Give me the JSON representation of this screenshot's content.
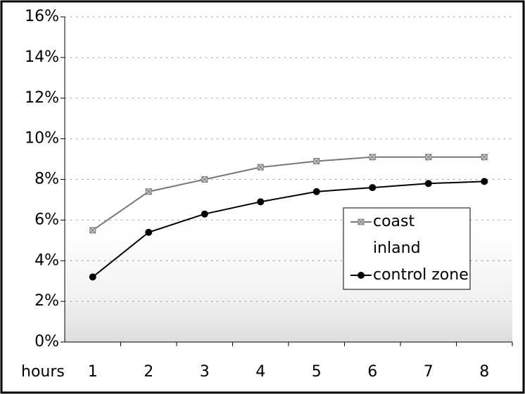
{
  "chart_data": {
    "type": "line",
    "x_label": "hours",
    "categories": [
      1,
      2,
      3,
      4,
      5,
      6,
      7,
      8
    ],
    "series": [
      {
        "name": "coast",
        "color": "#777777",
        "marker": "x",
        "values": [
          5.5,
          7.4,
          8.0,
          8.6,
          8.9,
          9.1,
          9.1,
          9.1
        ]
      },
      {
        "name": "inland",
        "color": "#ffffff",
        "marker": "none",
        "values": [
          null,
          null,
          null,
          null,
          null,
          null,
          null,
          null
        ]
      },
      {
        "name": "control zone",
        "color": "#000000",
        "marker": "circle",
        "values": [
          3.2,
          5.4,
          6.3,
          6.9,
          7.4,
          7.6,
          7.8,
          7.9
        ]
      }
    ],
    "ylim": [
      0,
      16
    ],
    "yticks": [
      {
        "value": 0,
        "label": "0%"
      },
      {
        "value": 2,
        "label": "2%"
      },
      {
        "value": 4,
        "label": "4%"
      },
      {
        "value": 6,
        "label": "6%"
      },
      {
        "value": 8,
        "label": "8%"
      },
      {
        "value": 10,
        "label": "10%"
      },
      {
        "value": 12,
        "label": "12%"
      },
      {
        "value": 14,
        "label": "14%"
      },
      {
        "value": 16,
        "label": "16%"
      }
    ],
    "grid": true,
    "legend": "right"
  }
}
